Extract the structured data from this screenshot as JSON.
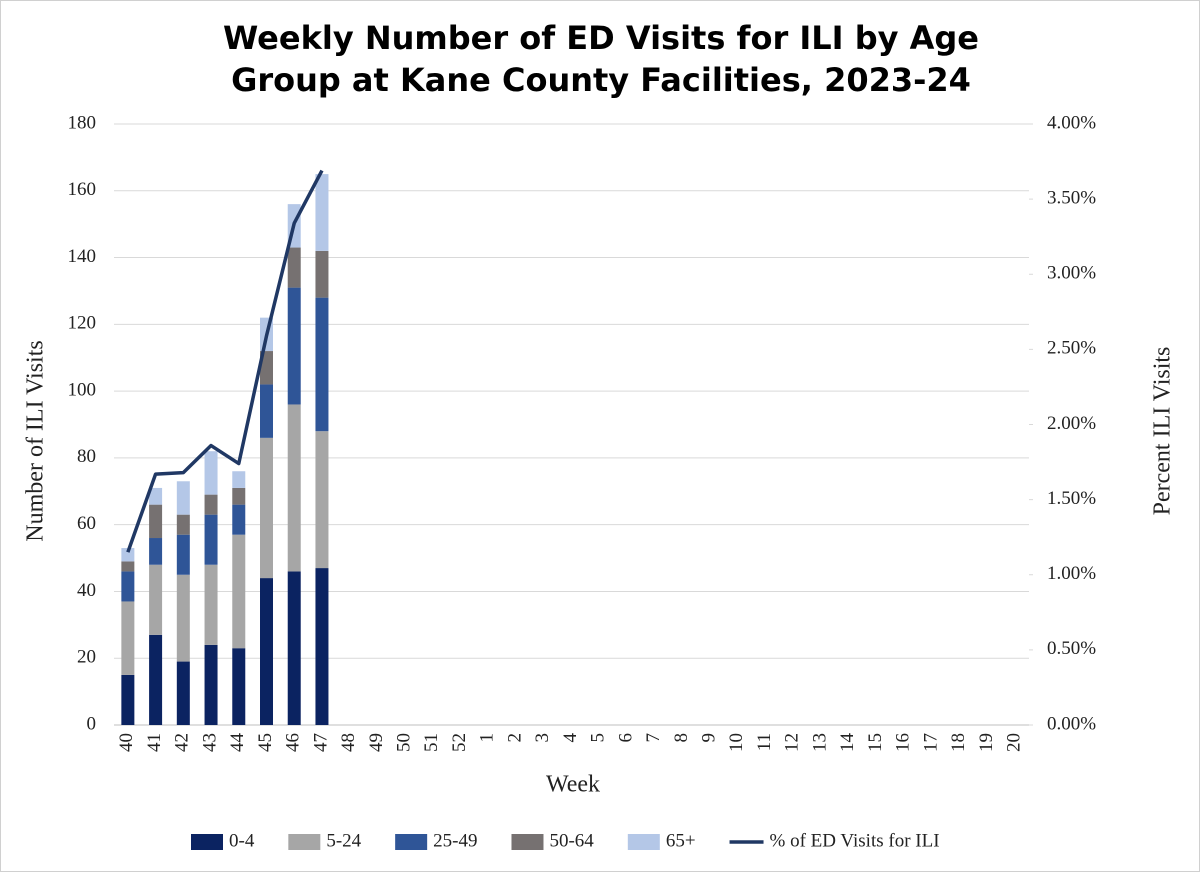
{
  "chart_data": {
    "type": "bar",
    "stacked": true,
    "title": "Weekly Number of ED Visits for ILI by Age Group at Kane County Facilities, 2023-24",
    "x_label": "Week",
    "y_label": "Number of ILI Visits",
    "y2_label": "Percent ILI Visits",
    "categories": [
      "40",
      "41",
      "42",
      "43",
      "44",
      "45",
      "46",
      "47",
      "48",
      "49",
      "50",
      "51",
      "52",
      "1",
      "2",
      "3",
      "4",
      "5",
      "6",
      "7",
      "8",
      "9",
      "10",
      "11",
      "12",
      "13",
      "14",
      "15",
      "16",
      "17",
      "18",
      "19",
      "20"
    ],
    "series": [
      {
        "name": "0-4",
        "color": "#0b2361",
        "values": [
          15,
          27,
          19,
          24,
          23,
          44,
          46,
          47,
          null,
          null,
          null,
          null,
          null,
          null,
          null,
          null,
          null,
          null,
          null,
          null,
          null,
          null,
          null,
          null,
          null,
          null,
          null,
          null,
          null,
          null,
          null,
          null,
          null
        ]
      },
      {
        "name": "5-24",
        "color": "#a6a6a6",
        "values": [
          22,
          21,
          26,
          24,
          34,
          42,
          50,
          41,
          null,
          null,
          null,
          null,
          null,
          null,
          null,
          null,
          null,
          null,
          null,
          null,
          null,
          null,
          null,
          null,
          null,
          null,
          null,
          null,
          null,
          null,
          null,
          null,
          null
        ]
      },
      {
        "name": "25-49",
        "color": "#2f5597",
        "values": [
          9,
          8,
          12,
          15,
          9,
          16,
          35,
          40,
          null,
          null,
          null,
          null,
          null,
          null,
          null,
          null,
          null,
          null,
          null,
          null,
          null,
          null,
          null,
          null,
          null,
          null,
          null,
          null,
          null,
          null,
          null,
          null,
          null
        ]
      },
      {
        "name": "50-64",
        "color": "#767171",
        "values": [
          3,
          10,
          6,
          6,
          5,
          10,
          12,
          14,
          null,
          null,
          null,
          null,
          null,
          null,
          null,
          null,
          null,
          null,
          null,
          null,
          null,
          null,
          null,
          null,
          null,
          null,
          null,
          null,
          null,
          null,
          null,
          null,
          null
        ]
      },
      {
        "name": "65+",
        "color": "#b4c7e7",
        "values": [
          4,
          5,
          10,
          13,
          5,
          10,
          13,
          23,
          null,
          null,
          null,
          null,
          null,
          null,
          null,
          null,
          null,
          null,
          null,
          null,
          null,
          null,
          null,
          null,
          null,
          null,
          null,
          null,
          null,
          null,
          null,
          null,
          null
        ]
      },
      {
        "name": "% of ED Visits for ILI",
        "color": "#203864",
        "type": "line",
        "axis": "y2",
        "values": [
          1.15,
          1.67,
          1.68,
          1.86,
          1.74,
          2.59,
          3.34,
          3.69,
          null,
          null,
          null,
          null,
          null,
          null,
          null,
          null,
          null,
          null,
          null,
          null,
          null,
          null,
          null,
          null,
          null,
          null,
          null,
          null,
          null,
          null,
          null,
          null,
          null
        ]
      }
    ],
    "ylim": [
      0,
      180
    ],
    "yticks": [
      0,
      20,
      40,
      60,
      80,
      100,
      120,
      140,
      160,
      180
    ],
    "y2lim": [
      0,
      4
    ],
    "y2ticks": [
      {
        "value": 0,
        "label": "0.00%"
      },
      {
        "value": 0.5,
        "label": "0.50%"
      },
      {
        "value": 1,
        "label": "1.00%"
      },
      {
        "value": 1.5,
        "label": "1.50%"
      },
      {
        "value": 2,
        "label": "2.00%"
      },
      {
        "value": 2.5,
        "label": "2.50%"
      },
      {
        "value": 3,
        "label": "3.00%"
      },
      {
        "value": 3.5,
        "label": "3.50%"
      },
      {
        "value": 4,
        "label": "4.00%"
      }
    ],
    "grid": true,
    "legend": "bottom"
  }
}
